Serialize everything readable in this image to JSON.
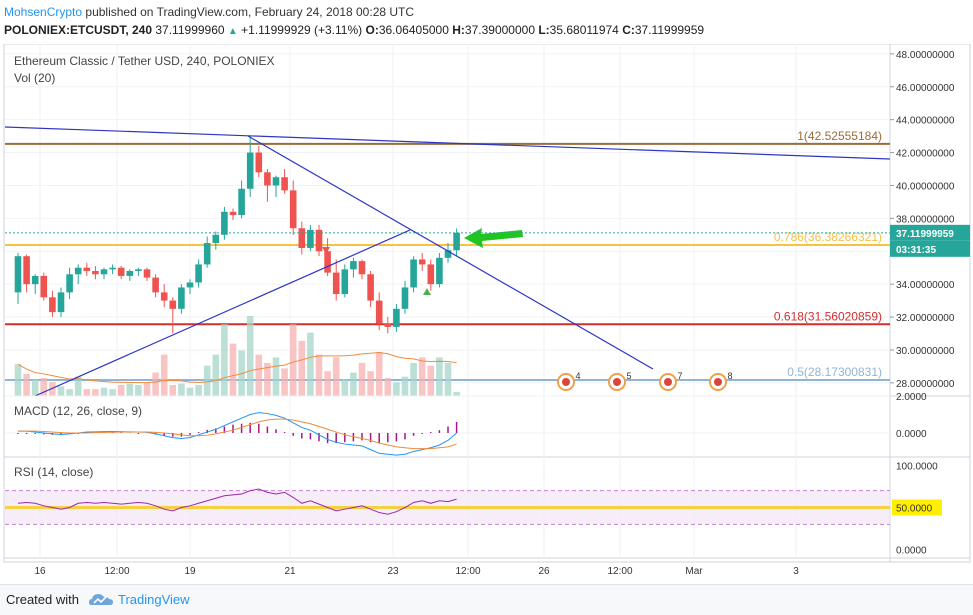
{
  "header": {
    "author": "MohsenCrypto",
    "published_text": "published on TradingView.com, February 24, 2018 00:28 UTC",
    "symbol": "POLONIEX:ETCUSDT, 240",
    "last": "37.11999960",
    "change": "+1.11999929 (+3.11%)",
    "open_label": "O:",
    "open": "36.06405000",
    "high_label": "H:",
    "high": "37.39000000",
    "low_label": "L:",
    "low": "35.68011974",
    "close_label": "C:",
    "close": "37.11999959"
  },
  "footer": {
    "created_with": "Created with",
    "brand": "TradingView"
  },
  "colors": {
    "up": "#26a69a",
    "down": "#ef5350",
    "trendline": "#2e35c6",
    "fib1": "#9b6b3a",
    "fib786": "#f5c242",
    "fib618": "#d32f2f",
    "fib05": "#90b4d6"
  },
  "chart_data": [
    {
      "type": "candlestick",
      "title": "Ethereum Classic / Tether USD, 240, POLONIEX",
      "volume_label": "Vol (20)",
      "x_ticks": [
        "16",
        "12:00",
        "19",
        "21",
        "23",
        "12:00",
        "26",
        "12:00",
        "Mar",
        "3"
      ],
      "y_ticks": [
        "48.00000000",
        "46.00000000",
        "44.00000000",
        "42.00000000",
        "40.00000000",
        "38.00000000",
        "36.00000000",
        "34.00000000",
        "32.00000000",
        "30.00000000",
        "28.00000000"
      ],
      "ylim": [
        27.2,
        48.6
      ],
      "candles": [
        [
          33.5,
          35.9,
          32.8,
          35.7
        ],
        [
          35.7,
          35.8,
          33.5,
          34.0
        ],
        [
          34.0,
          34.6,
          33.4,
          34.5
        ],
        [
          34.5,
          34.7,
          33.0,
          33.2
        ],
        [
          33.2,
          33.6,
          32.0,
          32.3
        ],
        [
          32.3,
          33.8,
          32.0,
          33.5
        ],
        [
          33.5,
          35.0,
          33.1,
          34.6
        ],
        [
          34.6,
          35.2,
          34.0,
          35.0
        ],
        [
          35.0,
          35.3,
          34.5,
          34.8
        ],
        [
          34.8,
          35.1,
          34.3,
          34.6
        ],
        [
          34.6,
          35.0,
          34.3,
          34.9
        ],
        [
          34.9,
          35.2,
          34.6,
          35.0
        ],
        [
          35.0,
          35.1,
          34.3,
          34.5
        ],
        [
          34.5,
          34.9,
          34.2,
          34.8
        ],
        [
          34.8,
          35.0,
          34.5,
          34.9
        ],
        [
          34.9,
          35.0,
          34.2,
          34.4
        ],
        [
          34.4,
          34.6,
          33.2,
          33.5
        ],
        [
          33.5,
          34.0,
          32.6,
          33.0
        ],
        [
          33.0,
          33.2,
          31.0,
          32.5
        ],
        [
          32.5,
          34.0,
          32.2,
          33.8
        ],
        [
          33.8,
          34.3,
          33.4,
          34.1
        ],
        [
          34.1,
          35.5,
          33.8,
          35.2
        ],
        [
          35.2,
          36.9,
          35.0,
          36.5
        ],
        [
          36.5,
          37.2,
          36.1,
          37.0
        ],
        [
          37.0,
          38.7,
          36.7,
          38.4
        ],
        [
          38.4,
          38.6,
          37.9,
          38.2
        ],
        [
          38.2,
          40.3,
          38.0,
          39.8
        ],
        [
          39.8,
          43.0,
          39.3,
          42.0
        ],
        [
          42.0,
          42.4,
          40.5,
          40.8
        ],
        [
          40.8,
          41.0,
          39.0,
          40.0
        ],
        [
          40.0,
          40.6,
          39.3,
          40.5
        ],
        [
          40.5,
          41.0,
          39.5,
          39.7
        ],
        [
          39.7,
          40.3,
          37.0,
          37.4
        ],
        [
          37.4,
          37.8,
          35.8,
          36.2
        ],
        [
          36.2,
          37.6,
          36.0,
          37.3
        ],
        [
          37.3,
          37.6,
          35.7,
          36.0
        ],
        [
          36.0,
          36.8,
          34.5,
          34.7
        ],
        [
          34.7,
          35.5,
          33.0,
          33.4
        ],
        [
          33.4,
          35.2,
          33.2,
          34.9
        ],
        [
          34.9,
          35.6,
          34.4,
          35.4
        ],
        [
          35.4,
          35.5,
          34.3,
          34.6
        ],
        [
          34.6,
          34.8,
          32.6,
          33.0
        ],
        [
          33.0,
          33.5,
          31.2,
          31.6
        ],
        [
          31.6,
          32.0,
          31.0,
          31.4
        ],
        [
          31.4,
          32.8,
          31.1,
          32.5
        ],
        [
          32.5,
          34.2,
          32.2,
          33.8
        ],
        [
          33.8,
          35.7,
          33.5,
          35.5
        ],
        [
          35.5,
          35.9,
          34.8,
          35.2
        ],
        [
          35.2,
          35.5,
          33.6,
          34.0
        ],
        [
          34.0,
          35.9,
          33.8,
          35.6
        ],
        [
          35.6,
          36.5,
          35.3,
          36.06
        ],
        [
          36.06,
          37.39,
          35.68,
          37.12
        ]
      ],
      "volume": [
        23,
        16,
        12,
        13,
        10,
        7,
        5,
        14,
        5,
        5,
        6,
        5,
        8,
        9,
        8,
        10,
        17,
        30,
        8,
        9,
        6,
        8,
        22,
        30,
        52,
        38,
        33,
        58,
        30,
        24,
        28,
        20,
        52,
        40,
        46,
        30,
        18,
        28,
        12,
        17,
        24,
        18,
        32,
        13,
        10,
        14,
        24,
        28,
        22,
        28,
        24,
        3
      ],
      "annotations": {
        "fib_levels": [
          {
            "label": "1(42.52555184)",
            "value": 42.52555184
          },
          {
            "label": "0.786(36.38266321)",
            "value": 36.38266321
          },
          {
            "label": "0.618(31.56020859)",
            "value": 31.56020859
          },
          {
            "label": "0.5(28.17300831)",
            "value": 28.17300831
          }
        ],
        "price_tag": "37.11999959",
        "countdown": "03:31:35",
        "event_markers": [
          "4",
          "5",
          "7",
          "8"
        ]
      }
    },
    {
      "type": "line",
      "title": "MACD (12, 26, close, 9)",
      "y_ticks": [
        "2.0000",
        "0.0000"
      ],
      "ylim": [
        -1.3,
        2.0
      ],
      "series": [
        {
          "name": "MACD",
          "values": [
            0.1,
            0.1,
            0.05,
            0.0,
            -0.05,
            -0.08,
            -0.05,
            0.0,
            0.05,
            0.06,
            0.07,
            0.08,
            0.07,
            0.06,
            0.05,
            0.04,
            -0.05,
            -0.15,
            -0.25,
            -0.3,
            -0.25,
            -0.1,
            0.05,
            0.2,
            0.4,
            0.6,
            0.8,
            1.0,
            1.1,
            1.05,
            0.95,
            0.8,
            0.55,
            0.3,
            0.15,
            -0.1,
            -0.35,
            -0.5,
            -0.6,
            -0.65,
            -0.7,
            -0.9,
            -1.1,
            -1.15,
            -1.2,
            -1.15,
            -1.0,
            -0.9,
            -0.8,
            -0.65,
            -0.4,
            0.0
          ]
        },
        {
          "name": "Signal",
          "values": [
            0.1,
            0.1,
            0.1,
            0.08,
            0.05,
            0.02,
            0.0,
            0.0,
            0.0,
            0.02,
            0.03,
            0.04,
            0.05,
            0.05,
            0.05,
            0.05,
            0.03,
            0.0,
            -0.05,
            -0.1,
            -0.15,
            -0.15,
            -0.12,
            -0.05,
            0.05,
            0.15,
            0.3,
            0.45,
            0.6,
            0.7,
            0.75,
            0.75,
            0.7,
            0.6,
            0.5,
            0.35,
            0.2,
            0.05,
            -0.1,
            -0.2,
            -0.3,
            -0.4,
            -0.55,
            -0.65,
            -0.75,
            -0.8,
            -0.85,
            -0.85,
            -0.85,
            -0.8,
            -0.75,
            -0.6
          ]
        }
      ]
    },
    {
      "type": "line",
      "title": "RSI (14, close)",
      "y_ticks": [
        "100.0000",
        "50.0000",
        "0.0000"
      ],
      "ylim": [
        -10,
        110
      ],
      "series": [
        {
          "name": "RSI",
          "values": [
            55,
            56,
            55,
            52,
            50,
            48,
            50,
            55,
            56,
            55,
            56,
            55,
            54,
            55,
            56,
            55,
            52,
            48,
            46,
            50,
            52,
            55,
            58,
            61,
            64,
            65,
            66,
            70,
            72,
            68,
            66,
            68,
            62,
            55,
            58,
            54,
            50,
            46,
            48,
            50,
            52,
            48,
            44,
            42,
            45,
            50,
            56,
            58,
            55,
            58,
            57,
            60
          ]
        }
      ]
    }
  ]
}
